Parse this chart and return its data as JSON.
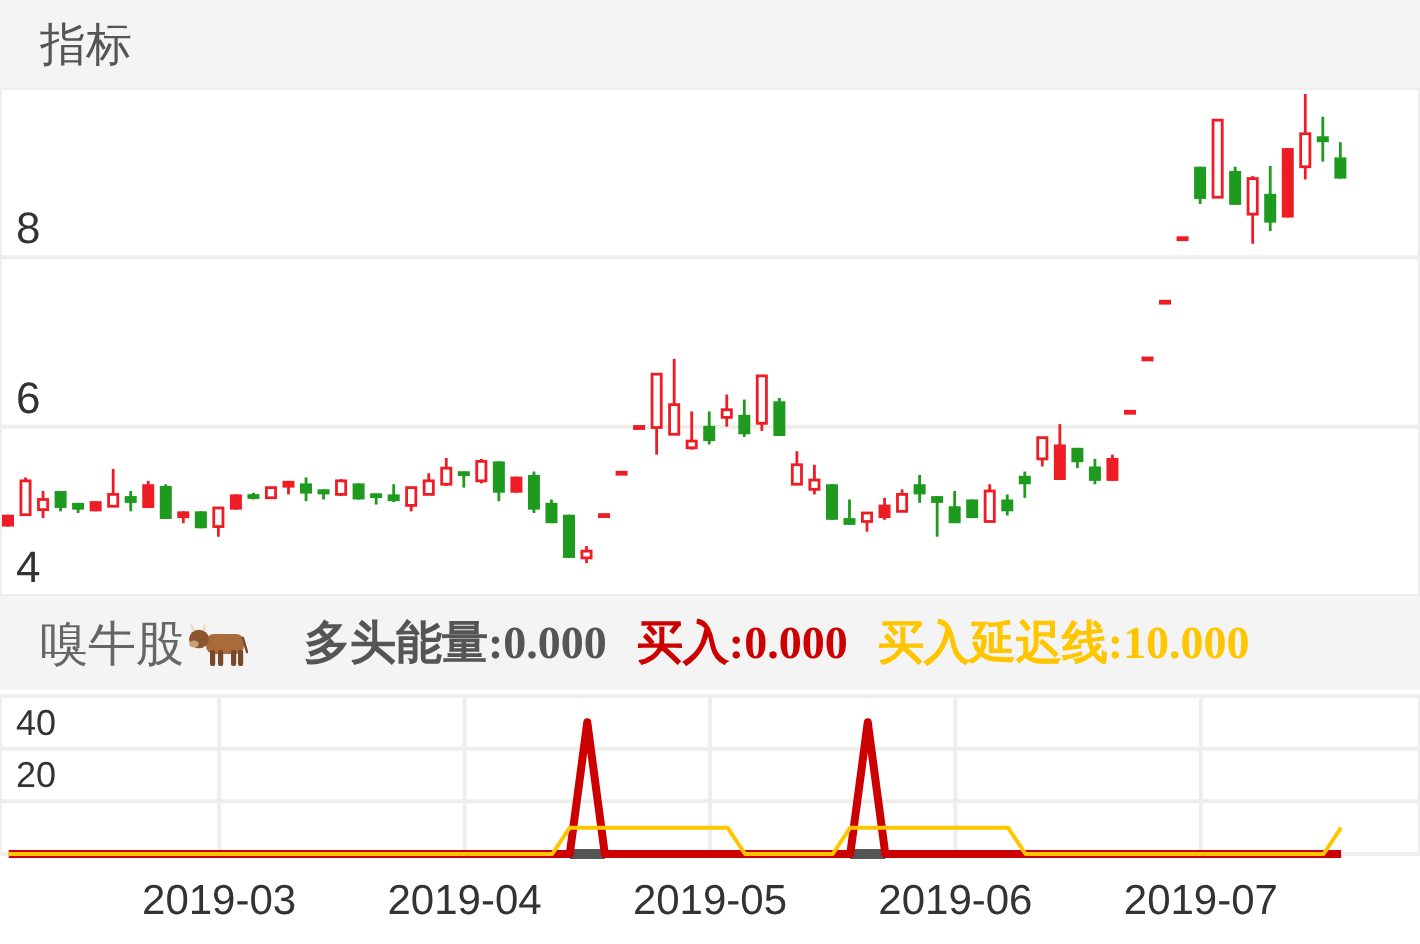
{
  "chart_data": [
    {
      "type": "candlestick",
      "title": "指标",
      "categories": [
        null,
        null,
        null,
        null,
        null,
        null,
        null,
        null,
        null,
        null,
        null,
        null,
        "2019-03",
        null,
        null,
        null,
        null,
        null,
        null,
        null,
        null,
        null,
        null,
        null,
        null,
        null,
        "2019-04",
        null,
        null,
        null,
        null,
        null,
        null,
        null,
        null,
        null,
        null,
        null,
        null,
        null,
        "2019-05",
        null,
        null,
        null,
        null,
        null,
        null,
        null,
        null,
        null,
        null,
        null,
        null,
        null,
        "2019-06",
        null,
        null,
        null,
        null,
        null,
        null,
        null,
        null,
        null,
        null,
        null,
        null,
        null,
        "2019-07",
        null,
        null,
        null,
        null,
        null,
        null,
        null,
        null
      ],
      "ohlc": [
        [
          4.96,
          4.96,
          4.82,
          4.82
        ],
        [
          4.96,
          5.4,
          4.96,
          5.36
        ],
        [
          5.02,
          5.24,
          4.92,
          5.14
        ],
        [
          5.24,
          5.24,
          5.0,
          5.04
        ],
        [
          5.1,
          5.1,
          4.98,
          5.02
        ],
        [
          5.12,
          5.12,
          5.0,
          5.0
        ],
        [
          5.06,
          5.5,
          5.05,
          5.2
        ],
        [
          5.18,
          5.24,
          5.0,
          5.1
        ],
        [
          5.32,
          5.36,
          5.04,
          5.04
        ],
        [
          5.3,
          5.32,
          4.91,
          4.91
        ],
        [
          5.0,
          5.0,
          4.86,
          4.92
        ],
        [
          5.0,
          5.0,
          4.8,
          4.8
        ],
        [
          4.82,
          5.04,
          4.7,
          5.04
        ],
        [
          5.2,
          5.2,
          5.02,
          5.02
        ],
        [
          5.19,
          5.22,
          5.14,
          5.16
        ],
        [
          5.16,
          5.28,
          5.16,
          5.28
        ],
        [
          5.36,
          5.36,
          5.2,
          5.28
        ],
        [
          5.33,
          5.4,
          5.12,
          5.21
        ],
        [
          5.26,
          5.26,
          5.14,
          5.2
        ],
        [
          5.2,
          5.38,
          5.18,
          5.36
        ],
        [
          5.33,
          5.33,
          5.14,
          5.14
        ],
        [
          5.21,
          5.21,
          5.08,
          5.16
        ],
        [
          5.2,
          5.32,
          5.11,
          5.12
        ],
        [
          5.07,
          5.28,
          5.0,
          5.28
        ],
        [
          5.2,
          5.45,
          5.2,
          5.36
        ],
        [
          5.32,
          5.63,
          5.3,
          5.51
        ],
        [
          5.47,
          5.47,
          5.28,
          5.42
        ],
        [
          5.36,
          5.62,
          5.33,
          5.59
        ],
        [
          5.59,
          5.59,
          5.12,
          5.22
        ],
        [
          5.41,
          5.41,
          5.22,
          5.22
        ],
        [
          5.43,
          5.47,
          4.98,
          5.02
        ],
        [
          5.1,
          5.14,
          4.86,
          4.86
        ],
        [
          4.96,
          4.96,
          4.45,
          4.45
        ],
        [
          4.45,
          4.59,
          4.39,
          4.53
        ],
        [
          4.95,
          4.95,
          4.95,
          4.95
        ],
        [
          5.45,
          5.45,
          5.45,
          5.45
        ],
        [
          5.99,
          5.99,
          5.99,
          5.99
        ],
        [
          5.99,
          6.62,
          5.67,
          6.62
        ],
        [
          5.91,
          6.8,
          5.91,
          6.26
        ],
        [
          5.75,
          6.18,
          5.73,
          5.83
        ],
        [
          6.01,
          6.18,
          5.79,
          5.83
        ],
        [
          6.11,
          6.38,
          6.0,
          6.2
        ],
        [
          6.14,
          6.32,
          5.88,
          5.91
        ],
        [
          6.04,
          6.6,
          5.95,
          6.6
        ],
        [
          6.3,
          6.34,
          5.89,
          5.89
        ],
        [
          5.32,
          5.71,
          5.32,
          5.55
        ],
        [
          5.26,
          5.55,
          5.2,
          5.37
        ],
        [
          5.32,
          5.32,
          4.9,
          4.9
        ],
        [
          4.92,
          5.14,
          4.84,
          4.84
        ],
        [
          4.88,
          4.98,
          4.76,
          4.98
        ],
        [
          5.08,
          5.16,
          4.9,
          4.92
        ],
        [
          5.0,
          5.26,
          5.0,
          5.2
        ],
        [
          5.32,
          5.43,
          5.1,
          5.2
        ],
        [
          5.18,
          5.18,
          4.7,
          5.1
        ],
        [
          5.06,
          5.24,
          4.86,
          4.86
        ],
        [
          5.14,
          5.14,
          4.92,
          4.92
        ],
        [
          4.88,
          5.32,
          4.88,
          5.24
        ],
        [
          5.14,
          5.2,
          4.95,
          5.0
        ],
        [
          5.42,
          5.47,
          5.16,
          5.32
        ],
        [
          5.62,
          5.87,
          5.53,
          5.87
        ],
        [
          5.79,
          6.03,
          5.37,
          5.37
        ],
        [
          5.75,
          5.75,
          5.51,
          5.58
        ],
        [
          5.53,
          5.62,
          5.32,
          5.36
        ],
        [
          5.63,
          5.67,
          5.36,
          5.36
        ],
        [
          6.17,
          6.17,
          6.17,
          6.17
        ],
        [
          6.8,
          6.8,
          6.8,
          6.8
        ],
        [
          7.47,
          7.47,
          7.47,
          7.47
        ],
        [
          8.22,
          8.22,
          8.22,
          8.22
        ],
        [
          9.07,
          9.07,
          8.63,
          8.69
        ],
        [
          8.71,
          9.62,
          8.71,
          9.62
        ],
        [
          9.02,
          9.07,
          8.62,
          8.62
        ],
        [
          8.51,
          8.96,
          8.16,
          8.93
        ],
        [
          8.75,
          9.08,
          8.31,
          8.41
        ],
        [
          9.29,
          9.29,
          8.47,
          8.47
        ],
        [
          9.07,
          9.93,
          8.92,
          9.46
        ],
        [
          9.43,
          9.66,
          9.13,
          9.36
        ],
        [
          9.18,
          9.36,
          8.93,
          8.93
        ]
      ],
      "colors": [
        "#ee1c24",
        "#ee1c24",
        "#ee1c24",
        "#1e9a1e",
        "#1e9a1e",
        "#ee1c24",
        "#ee1c24",
        "#1e9a1e",
        "#ee1c24",
        "#1e9a1e",
        "#ee1c24",
        "#1e9a1e",
        "#ee1c24",
        "#ee1c24",
        "#1e9a1e",
        "#ee1c24",
        "#ee1c24",
        "#1e9a1e",
        "#1e9a1e",
        "#ee1c24",
        "#1e9a1e",
        "#1e9a1e",
        "#1e9a1e",
        "#ee1c24",
        "#ee1c24",
        "#ee1c24",
        "#1e9a1e",
        "#ee1c24",
        "#1e9a1e",
        "#ee1c24",
        "#1e9a1e",
        "#1e9a1e",
        "#1e9a1e",
        "#ee1c24",
        "#ee1c24",
        "#ee1c24",
        "#ee1c24",
        "#ee1c24",
        "#ee1c24",
        "#ee1c24",
        "#1e9a1e",
        "#ee1c24",
        "#1e9a1e",
        "#ee1c24",
        "#1e9a1e",
        "#ee1c24",
        "#ee1c24",
        "#1e9a1e",
        "#1e9a1e",
        "#ee1c24",
        "#ee1c24",
        "#ee1c24",
        "#1e9a1e",
        "#1e9a1e",
        "#1e9a1e",
        "#1e9a1e",
        "#ee1c24",
        "#1e9a1e",
        "#1e9a1e",
        "#ee1c24",
        "#ee1c24",
        "#1e9a1e",
        "#1e9a1e",
        "#ee1c24",
        "#ee1c24",
        "#ee1c24",
        "#ee1c24",
        "#ee1c24",
        "#1e9a1e",
        "#ee1c24",
        "#1e9a1e",
        "#ee1c24",
        "#1e9a1e",
        "#ee1c24",
        "#ee1c24",
        "#1e9a1e",
        "#1e9a1e"
      ],
      "ylim": [
        4,
        10
      ],
      "yticks": [
        4,
        6,
        8
      ],
      "grid": true,
      "tick_labels": "y"
    },
    {
      "type": "line",
      "title": "嗅牛股",
      "categories": [
        null,
        null,
        null,
        null,
        null,
        null,
        null,
        null,
        null,
        null,
        null,
        null,
        "2019-03",
        null,
        null,
        null,
        null,
        null,
        null,
        null,
        null,
        null,
        null,
        null,
        null,
        null,
        "2019-04",
        null,
        null,
        null,
        null,
        null,
        null,
        null,
        null,
        null,
        null,
        null,
        null,
        null,
        "2019-05",
        null,
        null,
        null,
        null,
        null,
        null,
        null,
        null,
        null,
        null,
        null,
        null,
        null,
        "2019-06",
        null,
        null,
        null,
        null,
        null,
        null,
        null,
        null,
        null,
        null,
        null,
        null,
        null,
        "2019-07",
        null,
        null,
        null,
        null,
        null,
        null,
        null,
        null
      ],
      "series": [
        {
          "name": "多头能量:0.000",
          "color": "#555555",
          "values": [
            null,
            null,
            null,
            null,
            null,
            null,
            null,
            null,
            null,
            null,
            null,
            null,
            null,
            null,
            null,
            null,
            null,
            null,
            null,
            null,
            null,
            null,
            null,
            null,
            null,
            null,
            null,
            null,
            null,
            null,
            null,
            null,
            0,
            0,
            0,
            null,
            null,
            null,
            null,
            null,
            null,
            null,
            null,
            null,
            null,
            null,
            null,
            null,
            0,
            0,
            0,
            null,
            null,
            null,
            null,
            null,
            null,
            null,
            null,
            null,
            null,
            null,
            null,
            null,
            null,
            null,
            null,
            null,
            null,
            null,
            null,
            null,
            null,
            null,
            null,
            null,
            null
          ]
        },
        {
          "name": "买入:0.000",
          "color": "#cc0000",
          "values": [
            0,
            0,
            0,
            0,
            0,
            0,
            0,
            0,
            0,
            0,
            0,
            0,
            0,
            0,
            0,
            0,
            0,
            0,
            0,
            0,
            0,
            0,
            0,
            0,
            0,
            0,
            0,
            0,
            0,
            0,
            0,
            0,
            0,
            50,
            0,
            0,
            0,
            0,
            0,
            0,
            0,
            0,
            0,
            0,
            0,
            0,
            0,
            0,
            0,
            50,
            0,
            0,
            0,
            0,
            0,
            0,
            0,
            0,
            0,
            0,
            0,
            0,
            0,
            0,
            0,
            0,
            0,
            0,
            0,
            0,
            0,
            0,
            0,
            0,
            0,
            0,
            0
          ]
        },
        {
          "name": "买入延迟线:10.000",
          "color": "#ffc600",
          "values": [
            0,
            0,
            0,
            0,
            0,
            0,
            0,
            0,
            0,
            0,
            0,
            0,
            0,
            0,
            0,
            0,
            0,
            0,
            0,
            0,
            0,
            0,
            0,
            0,
            0,
            0,
            0,
            0,
            0,
            0,
            0,
            0,
            10,
            10,
            10,
            10,
            10,
            10,
            10,
            10,
            10,
            10,
            0,
            0,
            0,
            0,
            0,
            0,
            10,
            10,
            10,
            10,
            10,
            10,
            10,
            10,
            10,
            10,
            0,
            0,
            0,
            0,
            0,
            0,
            0,
            0,
            0,
            0,
            0,
            0,
            0,
            0,
            0,
            0,
            0,
            0,
            10
          ]
        }
      ],
      "ylim": [
        0,
        60
      ],
      "yticks": [
        {
          "value": 0,
          "label": null
        },
        20,
        40,
        {
          "value": 60,
          "label": null
        }
      ],
      "grid": true,
      "legend": "top"
    }
  ]
}
